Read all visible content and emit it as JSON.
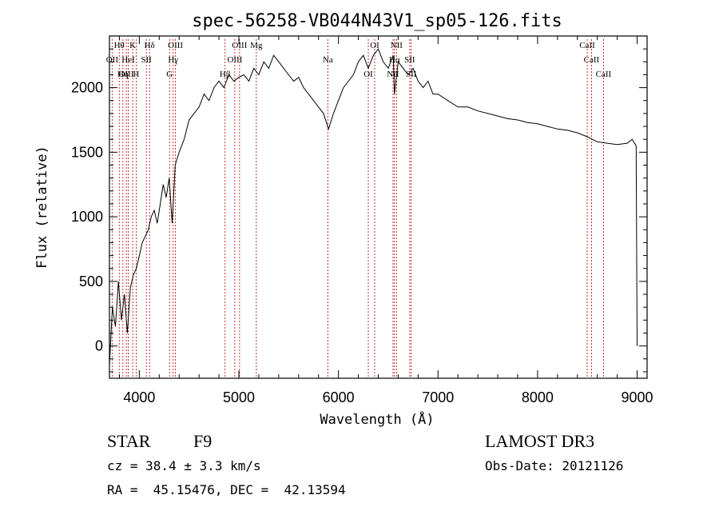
{
  "chart_data": {
    "type": "line",
    "title": "spec-56258-VB044N43V1_sp05-126.fits",
    "xlabel": "Wavelength (Å)",
    "ylabel": "Flux (relative)",
    "xlim": [
      3700,
      9100
    ],
    "ylim": [
      -250,
      2400
    ],
    "xticks": [
      4000,
      5000,
      6000,
      7000,
      8000,
      9000
    ],
    "yticks": [
      0,
      500,
      1000,
      1500,
      2000
    ],
    "grid": false,
    "series": [
      {
        "name": "flux",
        "x": [
          3700,
          3730,
          3760,
          3790,
          3820,
          3850,
          3880,
          3910,
          3940,
          3970,
          4000,
          4030,
          4060,
          4090,
          4120,
          4150,
          4180,
          4210,
          4240,
          4270,
          4300,
          4330,
          4360,
          4400,
          4450,
          4500,
          4550,
          4600,
          4650,
          4700,
          4750,
          4800,
          4850,
          4900,
          4950,
          5000,
          5050,
          5100,
          5150,
          5200,
          5250,
          5300,
          5350,
          5400,
          5450,
          5500,
          5550,
          5600,
          5650,
          5700,
          5750,
          5800,
          5850,
          5900,
          5950,
          6000,
          6050,
          6100,
          6150,
          6200,
          6250,
          6300,
          6350,
          6400,
          6450,
          6500,
          6550,
          6563,
          6600,
          6650,
          6700,
          6750,
          6800,
          6850,
          6900,
          6950,
          7000,
          7100,
          7200,
          7300,
          7400,
          7500,
          7600,
          7700,
          7800,
          7900,
          8000,
          8100,
          8200,
          8300,
          8400,
          8500,
          8600,
          8700,
          8800,
          8900,
          8950,
          8990,
          9000
        ],
        "y": [
          -150,
          300,
          150,
          500,
          200,
          400,
          100,
          450,
          550,
          600,
          700,
          800,
          850,
          900,
          1000,
          1050,
          950,
          1100,
          1250,
          1150,
          1300,
          950,
          1400,
          1500,
          1600,
          1750,
          1800,
          1850,
          1950,
          1900,
          2000,
          2050,
          2000,
          2100,
          2050,
          2080,
          2100,
          2050,
          2150,
          2100,
          2200,
          2150,
          2250,
          2200,
          2150,
          2100,
          2050,
          2080,
          2000,
          1950,
          1900,
          1850,
          1800,
          1680,
          1800,
          1900,
          2000,
          2050,
          2100,
          2200,
          2250,
          2150,
          2250,
          2300,
          2200,
          2150,
          2250,
          1950,
          2200,
          2150,
          2100,
          2150,
          2050,
          2000,
          2050,
          1950,
          1950,
          1900,
          1850,
          1850,
          1820,
          1800,
          1780,
          1760,
          1750,
          1730,
          1720,
          1700,
          1680,
          1670,
          1650,
          1620,
          1580,
          1570,
          1560,
          1570,
          1600,
          1550,
          0
        ]
      }
    ],
    "lines": [
      {
        "label": "Hθ",
        "x": 3798
      },
      {
        "label": "OII",
        "x": 3727
      },
      {
        "label": "OIII",
        "x": 3869
      },
      {
        "label": "K",
        "x": 3934
      },
      {
        "label": "HeI",
        "x": 3889
      },
      {
        "label": "Hη",
        "x": 3835
      },
      {
        "label": "Hδ",
        "x": 4102
      },
      {
        "label": "SII",
        "x": 4070
      },
      {
        "label": "H",
        "x": 3968
      },
      {
        "label": "OIII",
        "x": 4363
      },
      {
        "label": "Hγ",
        "x": 4340
      },
      {
        "label": "G",
        "x": 4304
      },
      {
        "label": "OIII",
        "x": 5007
      },
      {
        "label": "OIII",
        "x": 4959
      },
      {
        "label": "Hβ",
        "x": 4861
      },
      {
        "label": "Mg",
        "x": 5175
      },
      {
        "label": "Na",
        "x": 5893
      },
      {
        "label": "OI",
        "x": 6300
      },
      {
        "label": "OI",
        "x": 6364
      },
      {
        "label": "Hα",
        "x": 6563
      },
      {
        "label": "NII",
        "x": 6548
      },
      {
        "label": "NII",
        "x": 6583
      },
      {
        "label": "SII",
        "x": 6716
      },
      {
        "label": "SII",
        "x": 6731
      },
      {
        "label": "CaII",
        "x": 8498
      },
      {
        "label": "CaII",
        "x": 8542
      },
      {
        "label": "CaII",
        "x": 8662
      }
    ]
  },
  "info": {
    "object_class": "STAR",
    "subclass": "F9",
    "survey": "LAMOST DR3",
    "cz": "cz = 38.4 ± 3.3 km/s",
    "obs_date": "Obs-Date: 20121126",
    "coords": "RA =  45.15476, DEC =  42.13594"
  },
  "colors": {
    "line": "#000000",
    "marker": "#b00000"
  }
}
